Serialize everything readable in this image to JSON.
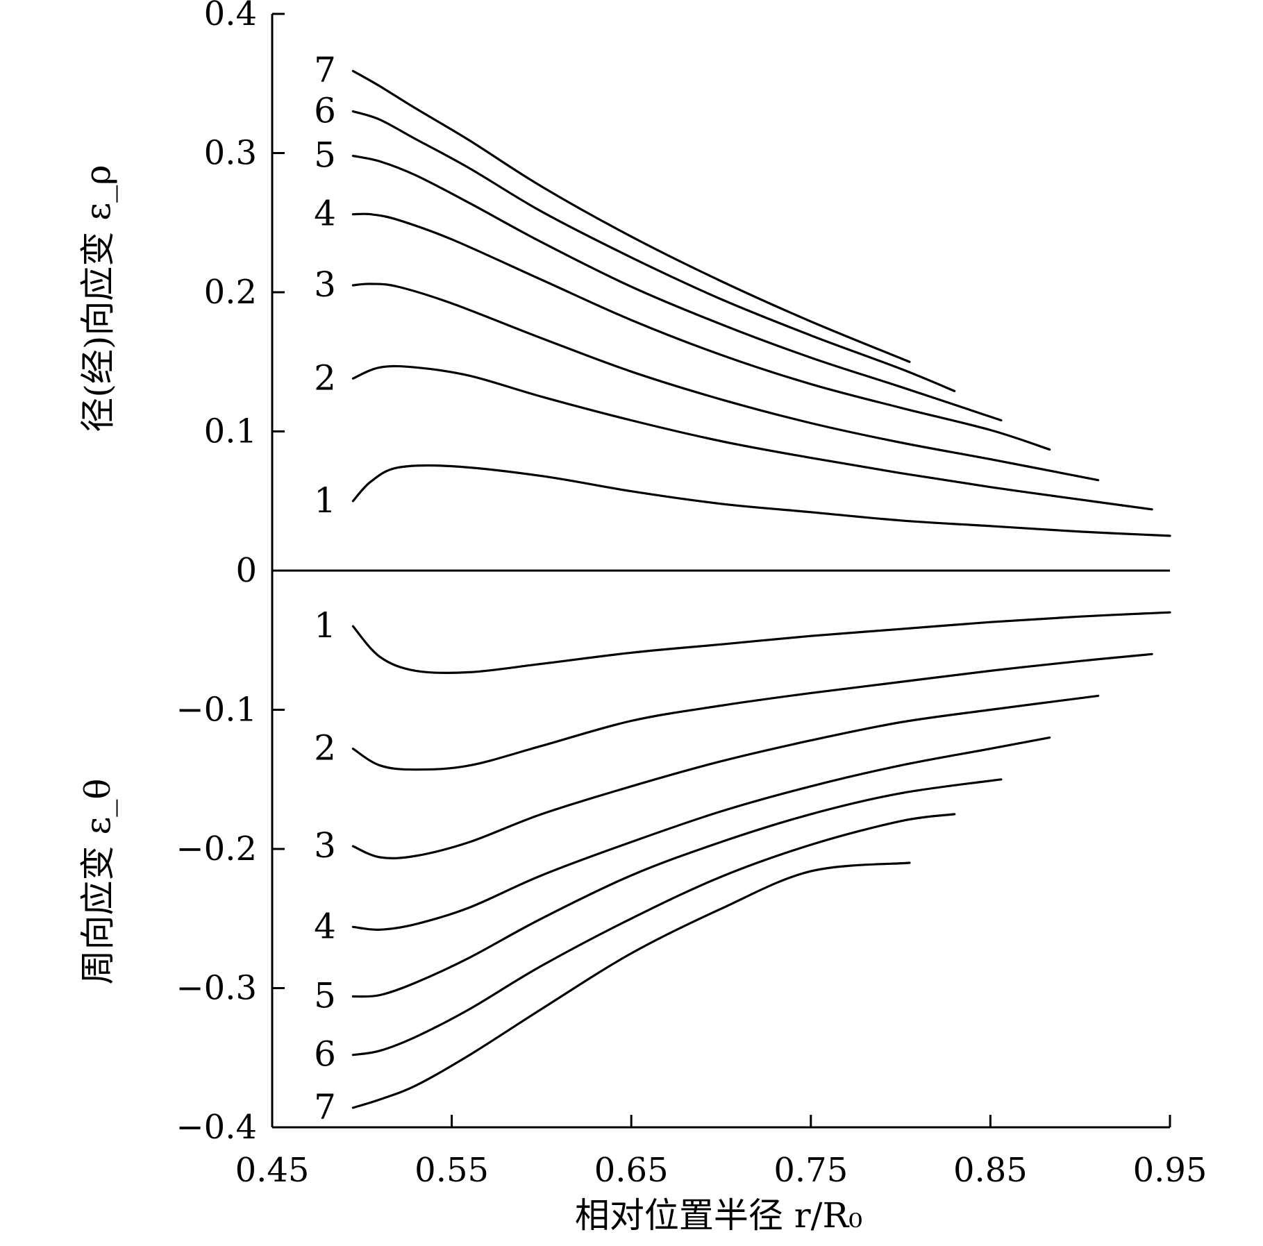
{
  "chart_data": {
    "type": "line",
    "xlabel": "相对位置半径 r/R₀",
    "ylabel_top": "径(经)向应变 ε_ρ",
    "ylabel_bottom": "周向应变 ε_θ",
    "xlim": [
      0.45,
      0.95
    ],
    "ylim": [
      -0.4,
      0.4
    ],
    "x_ticks": [
      {
        "value": 0.45,
        "label": "0.45"
      },
      {
        "value": 0.55,
        "label": "0.55"
      },
      {
        "value": 0.65,
        "label": "0.65"
      },
      {
        "value": 0.75,
        "label": "0.75"
      },
      {
        "value": 0.85,
        "label": "0.85"
      },
      {
        "value": 0.95,
        "label": "0.95"
      }
    ],
    "y_ticks": [
      {
        "value": 0.4,
        "label": "0.4"
      },
      {
        "value": 0.3,
        "label": "0.3"
      },
      {
        "value": 0.2,
        "label": "0.2"
      },
      {
        "value": 0.1,
        "label": "0.1"
      },
      {
        "value": 0,
        "label": "0"
      },
      {
        "value": -0.1,
        "label": "−0.1"
      },
      {
        "value": -0.2,
        "label": "−0.2"
      },
      {
        "value": -0.3,
        "label": "−0.3"
      },
      {
        "value": -0.4,
        "label": "−0.4"
      }
    ],
    "series": [
      {
        "name": "1",
        "group": "radial",
        "x": [
          0.495,
          0.505,
          0.52,
          0.55,
          0.6,
          0.65,
          0.7,
          0.75,
          0.8,
          0.85,
          0.9,
          0.95
        ],
        "y": [
          0.05,
          0.064,
          0.074,
          0.075,
          0.068,
          0.057,
          0.048,
          0.042,
          0.036,
          0.032,
          0.028,
          0.025
        ]
      },
      {
        "name": "2",
        "group": "radial",
        "x": [
          0.495,
          0.51,
          0.53,
          0.56,
          0.6,
          0.65,
          0.7,
          0.75,
          0.8,
          0.85,
          0.9,
          0.94
        ],
        "y": [
          0.138,
          0.146,
          0.146,
          0.14,
          0.125,
          0.108,
          0.093,
          0.081,
          0.07,
          0.06,
          0.051,
          0.044
        ]
      },
      {
        "name": "3",
        "group": "radial",
        "x": [
          0.495,
          0.505,
          0.52,
          0.55,
          0.6,
          0.65,
          0.7,
          0.75,
          0.8,
          0.85,
          0.91
        ],
        "y": [
          0.205,
          0.206,
          0.204,
          0.192,
          0.167,
          0.143,
          0.123,
          0.106,
          0.092,
          0.08,
          0.065
        ]
      },
      {
        "name": "4",
        "group": "radial",
        "x": [
          0.495,
          0.505,
          0.52,
          0.55,
          0.6,
          0.65,
          0.7,
          0.75,
          0.8,
          0.85,
          0.883
        ],
        "y": [
          0.256,
          0.256,
          0.252,
          0.238,
          0.209,
          0.18,
          0.155,
          0.134,
          0.117,
          0.101,
          0.087
        ]
      },
      {
        "name": "5",
        "group": "radial",
        "x": [
          0.495,
          0.51,
          0.53,
          0.56,
          0.6,
          0.65,
          0.7,
          0.75,
          0.8,
          0.856
        ],
        "y": [
          0.298,
          0.294,
          0.284,
          0.264,
          0.236,
          0.204,
          0.177,
          0.153,
          0.132,
          0.108
        ]
      },
      {
        "name": "6",
        "group": "radial",
        "x": [
          0.495,
          0.51,
          0.53,
          0.56,
          0.6,
          0.65,
          0.7,
          0.75,
          0.8,
          0.83
        ],
        "y": [
          0.33,
          0.324,
          0.31,
          0.289,
          0.258,
          0.225,
          0.195,
          0.169,
          0.145,
          0.129
        ]
      },
      {
        "name": "7",
        "group": "radial",
        "x": [
          0.495,
          0.51,
          0.53,
          0.56,
          0.6,
          0.65,
          0.7,
          0.75,
          0.805
        ],
        "y": [
          0.359,
          0.348,
          0.332,
          0.309,
          0.276,
          0.24,
          0.208,
          0.179,
          0.15
        ]
      },
      {
        "name": "1",
        "group": "hoop",
        "x": [
          0.495,
          0.51,
          0.53,
          0.56,
          0.6,
          0.65,
          0.7,
          0.75,
          0.8,
          0.85,
          0.9,
          0.95
        ],
        "y": [
          -0.04,
          -0.062,
          -0.072,
          -0.073,
          -0.067,
          -0.059,
          -0.053,
          -0.047,
          -0.042,
          -0.037,
          -0.033,
          -0.03
        ]
      },
      {
        "name": "2",
        "group": "hoop",
        "x": [
          0.495,
          0.51,
          0.53,
          0.56,
          0.6,
          0.65,
          0.7,
          0.75,
          0.8,
          0.85,
          0.9,
          0.94
        ],
        "y": [
          -0.128,
          -0.14,
          -0.143,
          -0.14,
          -0.126,
          -0.108,
          -0.097,
          -0.088,
          -0.08,
          -0.072,
          -0.065,
          -0.06
        ]
      },
      {
        "name": "3",
        "group": "hoop",
        "x": [
          0.495,
          0.51,
          0.53,
          0.56,
          0.6,
          0.65,
          0.7,
          0.75,
          0.8,
          0.85,
          0.91
        ],
        "y": [
          -0.198,
          -0.206,
          -0.205,
          -0.195,
          -0.175,
          -0.155,
          -0.137,
          -0.122,
          -0.109,
          -0.1,
          -0.09
        ]
      },
      {
        "name": "4",
        "group": "hoop",
        "x": [
          0.495,
          0.51,
          0.53,
          0.56,
          0.6,
          0.65,
          0.7,
          0.75,
          0.8,
          0.85,
          0.883
        ],
        "y": [
          -0.256,
          -0.258,
          -0.254,
          -0.242,
          -0.219,
          -0.195,
          -0.173,
          -0.155,
          -0.14,
          -0.128,
          -0.12
        ]
      },
      {
        "name": "5",
        "group": "hoop",
        "x": [
          0.495,
          0.51,
          0.53,
          0.56,
          0.6,
          0.65,
          0.7,
          0.75,
          0.8,
          0.856
        ],
        "y": [
          -0.306,
          -0.305,
          -0.296,
          -0.278,
          -0.25,
          -0.219,
          -0.195,
          -0.175,
          -0.16,
          -0.15
        ]
      },
      {
        "name": "6",
        "group": "hoop",
        "x": [
          0.495,
          0.51,
          0.53,
          0.56,
          0.6,
          0.65,
          0.7,
          0.75,
          0.8,
          0.83
        ],
        "y": [
          -0.348,
          -0.345,
          -0.335,
          -0.315,
          -0.284,
          -0.25,
          -0.22,
          -0.197,
          -0.18,
          -0.175
        ]
      },
      {
        "name": "7",
        "group": "hoop",
        "x": [
          0.495,
          0.51,
          0.53,
          0.56,
          0.6,
          0.65,
          0.7,
          0.75,
          0.805
        ],
        "y": [
          -0.386,
          -0.38,
          -0.37,
          -0.348,
          -0.315,
          -0.275,
          -0.243,
          -0.216,
          -0.21
        ]
      }
    ]
  }
}
